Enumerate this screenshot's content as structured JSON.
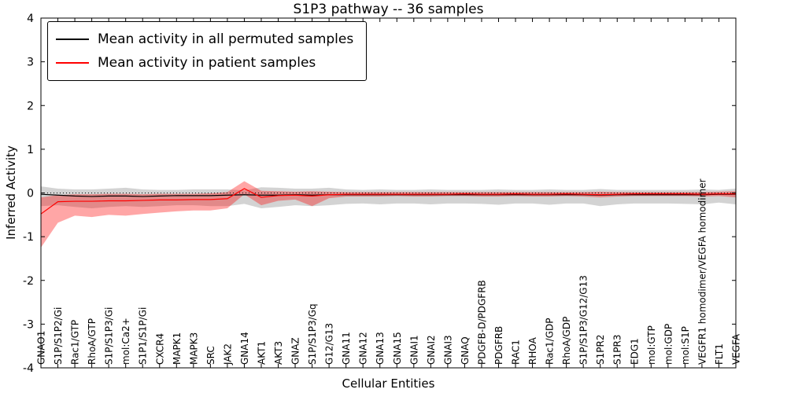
{
  "chart_data": {
    "type": "line",
    "title": "S1P3 pathway -- 36 samples",
    "xlabel": "Cellular Entities",
    "ylabel": "Inferred Activity",
    "ylim": [
      -4,
      4
    ],
    "yticks": [
      -4,
      -3,
      -2,
      -1,
      0,
      1,
      2,
      3,
      4
    ],
    "grid": false,
    "legend_position": "upper left",
    "reference_line_y": 0,
    "categories": [
      "GNAO1",
      "S1P/S1P2/Gi",
      "Rac1/GTP",
      "RhoA/GTP",
      "S1P/S1P3/Gi",
      "mol:Ca2+",
      "S1P1/S1P/Gi",
      "CXCR4",
      "MAPK1",
      "MAPK3",
      "SRC",
      "JAK2",
      "GNA14",
      "AKT1",
      "AKT3",
      "GNAZ",
      "S1P/S1P3/Gq",
      "G12/G13",
      "GNA11",
      "GNA12",
      "GNA13",
      "GNA15",
      "GNAI1",
      "GNAI2",
      "GNAI3",
      "GNAQ",
      "PDGFB-D/PDGFRB",
      "PDGFRB",
      "RAC1",
      "RHOA",
      "Rac1/GDP",
      "RhoA/GDP",
      "S1P/S1P3/G12/G13",
      "S1PR2",
      "S1PR3",
      "EDG1",
      "mol:GTP",
      "mol:GDP",
      "mol:S1P",
      "VEGFR1 homodimer/VEGFA homodimer",
      "FLT1",
      "VEGFA"
    ],
    "series": [
      {
        "name": "Mean activity in all permuted samples",
        "color": "#000000",
        "values": [
          -0.03,
          -0.05,
          -0.07,
          -0.08,
          -0.07,
          -0.07,
          -0.08,
          -0.07,
          -0.06,
          -0.06,
          -0.06,
          -0.05,
          -0.04,
          -0.05,
          -0.05,
          -0.04,
          -0.05,
          -0.04,
          -0.04,
          -0.04,
          -0.04,
          -0.04,
          -0.04,
          -0.04,
          -0.04,
          -0.04,
          -0.04,
          -0.04,
          -0.04,
          -0.04,
          -0.04,
          -0.04,
          -0.04,
          -0.05,
          -0.04,
          -0.04,
          -0.04,
          -0.04,
          -0.04,
          -0.04,
          -0.03,
          -0.03
        ]
      },
      {
        "name": "Mean activity in patient samples",
        "color": "#ff0000",
        "values": [
          -0.48,
          -0.2,
          -0.19,
          -0.19,
          -0.18,
          -0.18,
          -0.17,
          -0.16,
          -0.16,
          -0.15,
          -0.15,
          -0.13,
          0.1,
          -0.1,
          -0.06,
          -0.05,
          -0.07,
          -0.04,
          -0.03,
          -0.03,
          -0.03,
          -0.03,
          -0.03,
          -0.03,
          -0.03,
          -0.02,
          -0.03,
          -0.03,
          -0.02,
          -0.03,
          -0.03,
          -0.02,
          -0.03,
          -0.04,
          -0.03,
          -0.02,
          -0.02,
          -0.02,
          -0.02,
          -0.03,
          -0.02,
          -0.02
        ]
      }
    ],
    "bands": [
      {
        "name": "permuted-samples-range",
        "color": "#808080",
        "opacity": 0.35,
        "upper": [
          0.15,
          0.1,
          0.08,
          0.08,
          0.1,
          0.12,
          0.08,
          0.07,
          0.07,
          0.08,
          0.08,
          0.08,
          0.06,
          0.13,
          0.12,
          0.1,
          0.1,
          0.12,
          0.08,
          0.07,
          0.08,
          0.07,
          0.07,
          0.08,
          0.07,
          0.07,
          0.07,
          0.08,
          0.07,
          0.07,
          0.08,
          0.07,
          0.07,
          0.09,
          0.07,
          0.07,
          0.07,
          0.07,
          0.07,
          0.08,
          0.07,
          0.1
        ],
        "lower": [
          -0.3,
          -0.28,
          -0.32,
          -0.35,
          -0.32,
          -0.3,
          -0.32,
          -0.3,
          -0.28,
          -0.28,
          -0.3,
          -0.3,
          -0.25,
          -0.35,
          -0.32,
          -0.28,
          -0.3,
          -0.28,
          -0.25,
          -0.24,
          -0.26,
          -0.24,
          -0.24,
          -0.26,
          -0.24,
          -0.24,
          -0.25,
          -0.27,
          -0.24,
          -0.24,
          -0.27,
          -0.24,
          -0.24,
          -0.3,
          -0.26,
          -0.24,
          -0.24,
          -0.24,
          -0.25,
          -0.26,
          -0.22,
          -0.26
        ]
      },
      {
        "name": "patient-samples-range",
        "color": "#ff0000",
        "opacity": 0.35,
        "upper": [
          -0.1,
          -0.05,
          -0.03,
          -0.03,
          -0.02,
          -0.02,
          -0.03,
          -0.02,
          -0.02,
          -0.02,
          -0.01,
          0.02,
          0.27,
          0.05,
          0.04,
          0.03,
          0.04,
          0.03,
          0.02,
          0.02,
          0.02,
          0.02,
          0.02,
          0.02,
          0.02,
          0.02,
          0.02,
          0.02,
          0.02,
          0.02,
          0.02,
          0.02,
          0.02,
          0.03,
          0.02,
          0.02,
          0.02,
          0.02,
          0.02,
          0.02,
          0.03,
          0.04
        ],
        "lower": [
          -1.25,
          -0.68,
          -0.52,
          -0.55,
          -0.5,
          -0.52,
          -0.48,
          -0.45,
          -0.42,
          -0.4,
          -0.4,
          -0.35,
          -0.03,
          -0.28,
          -0.18,
          -0.15,
          -0.3,
          -0.12,
          -0.08,
          -0.08,
          -0.08,
          -0.07,
          -0.08,
          -0.08,
          -0.07,
          -0.07,
          -0.08,
          -0.08,
          -0.07,
          -0.08,
          -0.08,
          -0.07,
          -0.08,
          -0.1,
          -0.08,
          -0.07,
          -0.07,
          -0.07,
          -0.07,
          -0.08,
          -0.07,
          -0.1
        ]
      }
    ]
  }
}
